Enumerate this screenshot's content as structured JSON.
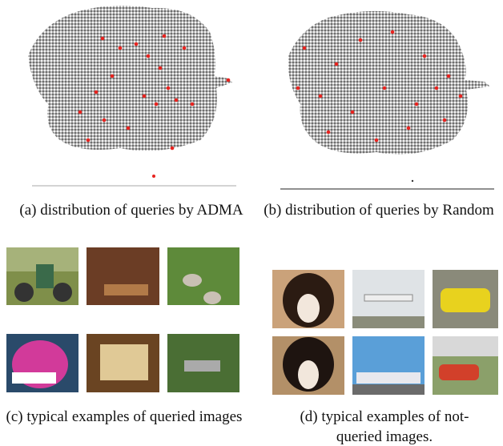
{
  "panels": [
    {
      "caption": "(a) distribution of queries by ADMA"
    },
    {
      "caption": "(b) distribution of queries by Random"
    },
    {
      "caption": "(c) typical examples of queried images"
    },
    {
      "caption": "(d) typical examples of not-queried images."
    }
  ]
}
